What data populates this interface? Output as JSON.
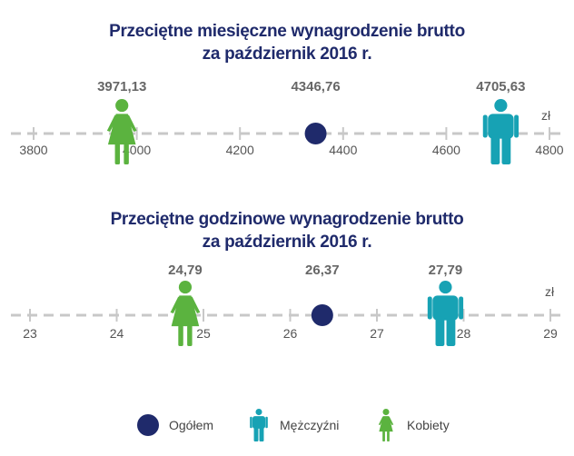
{
  "colors": {
    "ogolem": "#1f2a6b",
    "mezczyzni": "#17a2b4",
    "kobiety": "#5bb33f",
    "axis": "#c8c8c8",
    "title": "#1f2a6b"
  },
  "icons": {
    "ogolem": "circle-icon",
    "mezczyzni": "male-figure-icon",
    "kobiety": "female-figure-icon"
  },
  "chart_data": [
    {
      "type": "scatter",
      "title": [
        "Przeciętne miesięczne wynagrodzenie brutto",
        "za październik 2016 r."
      ],
      "unit": "zł",
      "xlim": [
        3750,
        4835
      ],
      "ticks": [
        "3800",
        "4000",
        "4200",
        "4400",
        "4600",
        "4800"
      ],
      "tick_values": [
        3800,
        4000,
        4200,
        4400,
        4600,
        4800
      ],
      "series": [
        {
          "name": "Kobiety",
          "value": 3971.13,
          "label": "3971,13",
          "marker": "female"
        },
        {
          "name": "Ogółem",
          "value": 4346.76,
          "label": "4346,76",
          "marker": "circle"
        },
        {
          "name": "Mężczyźni",
          "value": 4705.63,
          "label": "4705,63",
          "marker": "male"
        }
      ]
    },
    {
      "type": "scatter",
      "title": [
        "Przeciętne godzinowe wynagrodzenie brutto",
        "za październik 2016 r."
      ],
      "unit": "zł",
      "xlim": [
        22.75,
        29.3
      ],
      "ticks": [
        "23",
        "24",
        "25",
        "26",
        "27",
        "28",
        "29"
      ],
      "tick_values": [
        23,
        24,
        25,
        26,
        27,
        28,
        29
      ],
      "series": [
        {
          "name": "Kobiety",
          "value": 24.79,
          "label": "24,79",
          "marker": "female"
        },
        {
          "name": "Ogółem",
          "value": 26.37,
          "label": "26,37",
          "marker": "circle"
        },
        {
          "name": "Mężczyźni",
          "value": 27.79,
          "label": "27,79",
          "marker": "male"
        }
      ]
    }
  ],
  "legend": [
    {
      "label": "Ogółem",
      "marker": "circle"
    },
    {
      "label": "Mężczyźni",
      "marker": "male"
    },
    {
      "label": "Kobiety",
      "marker": "female"
    }
  ]
}
